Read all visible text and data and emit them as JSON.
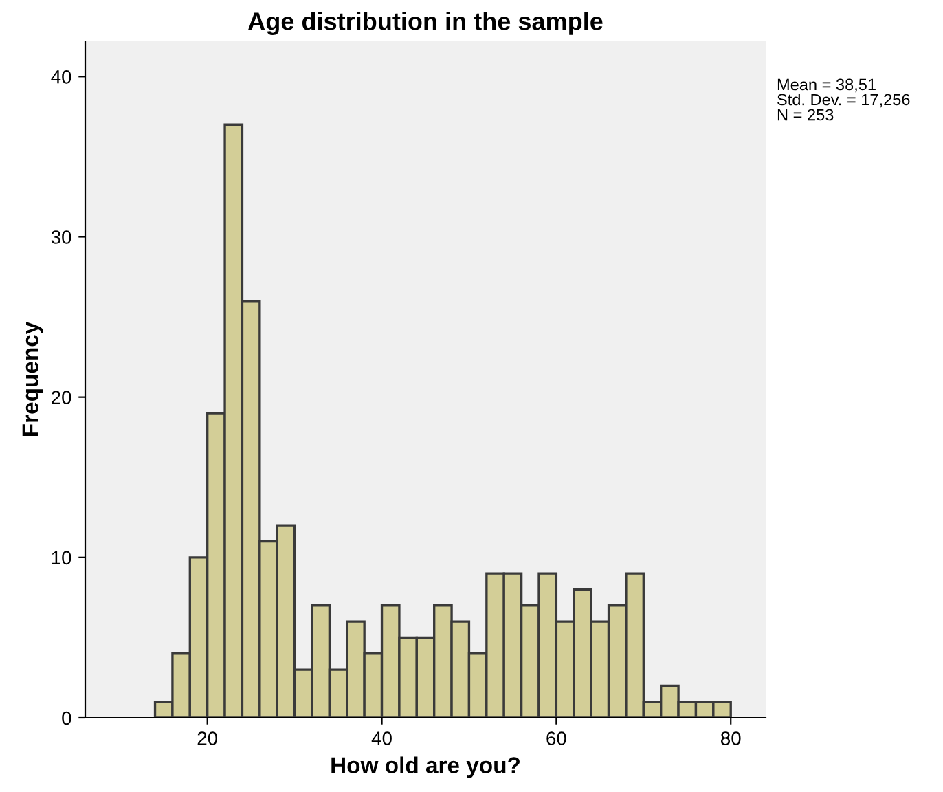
{
  "chart_data": {
    "type": "histogram",
    "title": "Age distribution in the sample",
    "xlabel": "How old are you?",
    "ylabel": "Frequency",
    "bins": [
      14,
      16,
      18,
      20,
      22,
      24,
      26,
      28,
      30,
      32,
      34,
      36,
      38,
      40,
      42,
      44,
      46,
      48,
      50,
      52,
      54,
      56,
      58,
      60,
      62,
      64,
      66,
      68,
      70,
      72,
      74,
      76,
      78,
      80
    ],
    "values": [
      1,
      4,
      10,
      19,
      37,
      26,
      11,
      12,
      3,
      7,
      3,
      6,
      4,
      7,
      5,
      5,
      7,
      6,
      4,
      9,
      9,
      7,
      9,
      6,
      8,
      6,
      7,
      9,
      1,
      2,
      1,
      1,
      1
    ],
    "color": "#d3ce97",
    "xlim": [
      6,
      84
    ],
    "xticks": [
      20,
      40,
      60,
      80
    ],
    "ylim": [
      0,
      42.2
    ],
    "yticks": [
      0,
      10,
      20,
      30,
      40
    ],
    "grid": false,
    "legend": false,
    "annotations": [
      "Mean = 38,51\nStd. Dev. = 17,256\nN = 253"
    ]
  }
}
